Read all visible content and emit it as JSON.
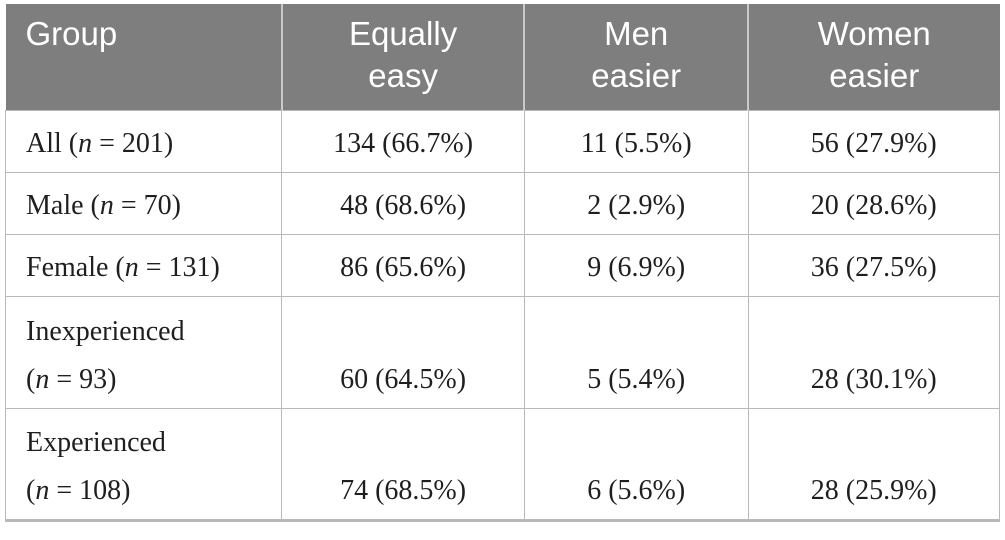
{
  "colors": {
    "header_bg": "#7e7e7e",
    "header_text": "#ffffff",
    "body_text": "#1f1f1f",
    "grid_line": "#b9b9b9",
    "header_divider": "#c9c9c9",
    "page_bg": "#ffffff"
  },
  "table": {
    "columns": [
      {
        "id": "group",
        "lines": [
          "Group"
        ],
        "align": "left"
      },
      {
        "id": "equally-easy",
        "lines": [
          "Equally",
          "easy"
        ],
        "align": "center"
      },
      {
        "id": "men-easier",
        "lines": [
          "Men",
          "easier"
        ],
        "align": "center"
      },
      {
        "id": "women-easier",
        "lines": [
          "Women",
          "easier"
        ],
        "align": "center"
      }
    ],
    "rows": [
      {
        "id": "all",
        "group_lines": [
          [
            {
              "text": "All (",
              "italic": false
            },
            {
              "text": "n",
              "italic": true
            },
            {
              "text": " = 201)",
              "italic": false
            }
          ]
        ],
        "cells": [
          "134 (66.7%)",
          "11 (5.5%)",
          "56 (27.9%)"
        ]
      },
      {
        "id": "male",
        "group_lines": [
          [
            {
              "text": "Male (",
              "italic": false
            },
            {
              "text": "n",
              "italic": true
            },
            {
              "text": " = 70)",
              "italic": false
            }
          ]
        ],
        "cells": [
          "48 (68.6%)",
          "2 (2.9%)",
          "20 (28.6%)"
        ]
      },
      {
        "id": "female",
        "group_lines": [
          [
            {
              "text": "Female (",
              "italic": false
            },
            {
              "text": "n",
              "italic": true
            },
            {
              "text": " = 131)",
              "italic": false
            }
          ]
        ],
        "cells": [
          "86 (65.6%)",
          "9 (6.9%)",
          "36 (27.5%)"
        ]
      },
      {
        "id": "inexperienced",
        "group_lines": [
          [
            {
              "text": "Inexperienced",
              "italic": false
            }
          ],
          [
            {
              "text": "(",
              "italic": false
            },
            {
              "text": "n",
              "italic": true
            },
            {
              "text": " = 93)",
              "italic": false
            }
          ]
        ],
        "cells": [
          "60 (64.5%)",
          "5 (5.4%)",
          "28 (30.1%)"
        ]
      },
      {
        "id": "experienced",
        "group_lines": [
          [
            {
              "text": "Experienced",
              "italic": false
            }
          ],
          [
            {
              "text": "(",
              "italic": false
            },
            {
              "text": "n",
              "italic": true
            },
            {
              "text": " = 108)",
              "italic": false
            }
          ]
        ],
        "cells": [
          "74 (68.5%)",
          "6 (5.6%)",
          "28 (25.9%)"
        ]
      }
    ]
  }
}
